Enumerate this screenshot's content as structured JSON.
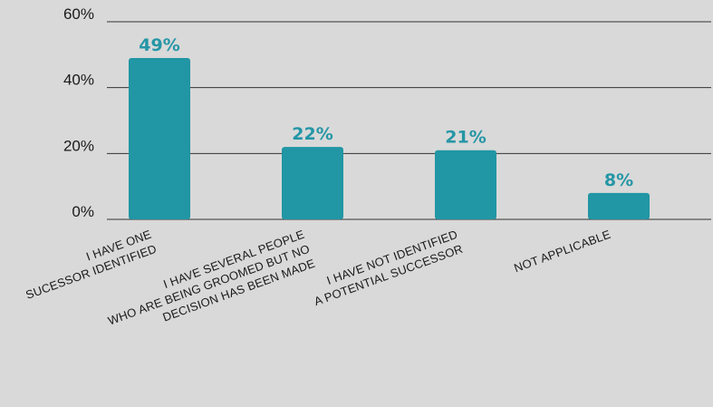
{
  "chart_data": {
    "type": "bar",
    "categories": [
      [
        "I HAVE ONE",
        "SUCESSOR IDENTIFIED"
      ],
      [
        "I HAVE SEVERAL PEOPLE",
        "WHO ARE BEING GROOMED BUT NO",
        "DECISION HAS BEEN MADE"
      ],
      [
        "I HAVE NOT IDENTIFIED",
        "A POTENTIAL SUCCESSOR"
      ],
      [
        "NOT APPLICABLE"
      ]
    ],
    "values": [
      49,
      22,
      21,
      8
    ],
    "data_labels": [
      "49%",
      "22%",
      "21%",
      "8%"
    ],
    "yticks": [
      0,
      20,
      40,
      60
    ],
    "ytick_labels": [
      "0%",
      "20%",
      "40%",
      "60%"
    ],
    "ylim": [
      0,
      60
    ],
    "title": "",
    "xlabel": "",
    "ylabel": "",
    "grid": true,
    "legend": "none",
    "colors": {
      "bar": "#2196a4",
      "data_label": "#2596a6",
      "grid": "#333333",
      "background": "#d9d9d9",
      "text": "#1a1a1a"
    }
  }
}
